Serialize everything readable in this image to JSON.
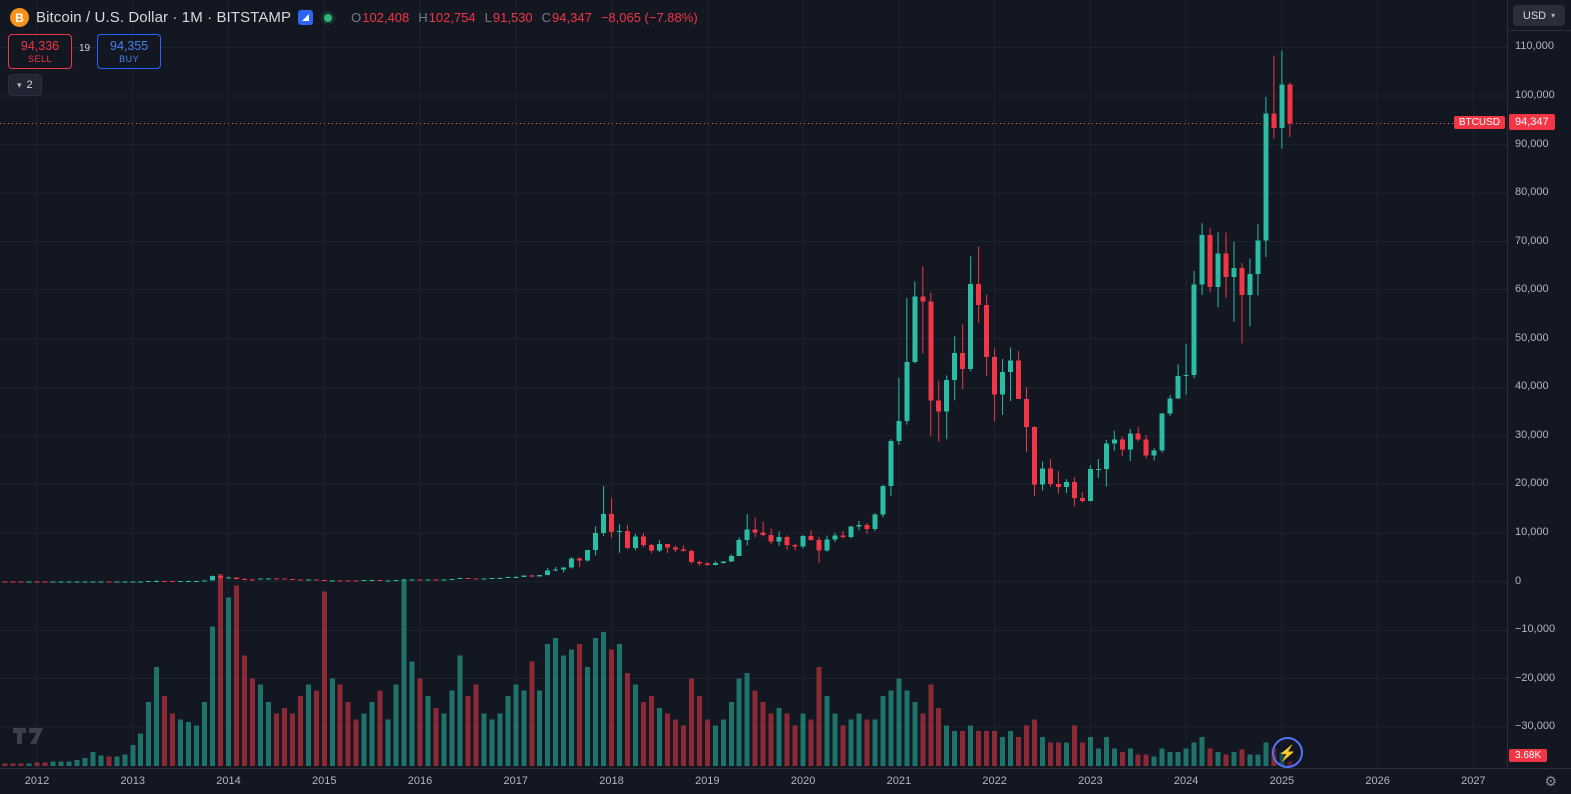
{
  "header": {
    "symbol_title": "Bitcoin / U.S. Dollar · 1M · BITSTAMP",
    "ohlc": {
      "open_label": "O",
      "open": "102,408",
      "high_label": "H",
      "high": "102,754",
      "low_label": "L",
      "low": "91,530",
      "close_label": "C",
      "close": "94,347",
      "change": "−8,065 (−7.88%)"
    },
    "currency_button": "USD"
  },
  "trade_panel": {
    "sell_price": "94,336",
    "sell_label": "SELL",
    "spread": "19",
    "buy_price": "94,355",
    "buy_label": "BUY"
  },
  "object_tree_button": {
    "count": "2"
  },
  "price_label": {
    "symbol_badge": "BTCUSD",
    "price": "94,347"
  },
  "volume_badge": "3.68K",
  "icons": {
    "bitcoin": "B",
    "caret_down": "▾",
    "chevron_down": "▾",
    "lightning": "⚡",
    "gear": "⚙"
  },
  "colors": {
    "background": "#131722",
    "panel_border": "#2a2e39",
    "grid": "#1c2130",
    "up": "#2abda4",
    "down": "#f23645",
    "vol_up": "rgba(42,189,164,0.55)",
    "vol_down": "rgba(242,54,69,0.55)",
    "axis_text": "#b2b5be",
    "text": "#d1d4dc",
    "muted_text": "#787b86",
    "bitcoin_orange": "#f7931a",
    "buy_blue": "#2962ff",
    "status_green": "#2bb673"
  },
  "axes": {
    "price_ticks": [
      "110,000",
      "100,000",
      "90,000",
      "80,000",
      "70,000",
      "60,000",
      "50,000",
      "40,000",
      "30,000",
      "20,000",
      "10,000",
      "0",
      "−10,000",
      "−20,000",
      "−30,000"
    ],
    "time_ticks": [
      "2012",
      "2013",
      "2014",
      "2015",
      "2016",
      "2017",
      "2018",
      "2019",
      "2020",
      "2021",
      "2022",
      "2023",
      "2024",
      "2025",
      "2026",
      "2027"
    ]
  },
  "chart_data": {
    "type": "candlestick",
    "title": "Bitcoin / U.S. Dollar, 1M, BITSTAMP",
    "interval": "1M",
    "start_month": "2011-08",
    "columns": [
      "open",
      "high",
      "low",
      "close",
      "volume_thousands"
    ],
    "price_axis_range": [
      -33000,
      114000
    ],
    "grid": true,
    "price_line": {
      "value": 94347,
      "color": "#f23645"
    },
    "current_volume_thousands": 3.68,
    "candles": [
      [
        11,
        11,
        5.9,
        8.2,
        2
      ],
      [
        8.2,
        8.9,
        4.8,
        5.0,
        2
      ],
      [
        5.0,
        5.5,
        2.0,
        3.2,
        2
      ],
      [
        3.2,
        3.6,
        1.9,
        3.0,
        2
      ],
      [
        3.0,
        5.0,
        2.8,
        4.7,
        2
      ],
      [
        5.3,
        7.2,
        3.8,
        5.0,
        3
      ],
      [
        5.0,
        6.2,
        4.2,
        4.9,
        3
      ],
      [
        4.9,
        5.5,
        4.2,
        4.9,
        4
      ],
      [
        4.9,
        5.4,
        4.6,
        5.0,
        4
      ],
      [
        5.0,
        5.9,
        4.8,
        5.2,
        4
      ],
      [
        5.2,
        6.8,
        5.1,
        6.7,
        5
      ],
      [
        6.7,
        9.5,
        6.4,
        9.4,
        7
      ],
      [
        9.4,
        16.4,
        7.6,
        10.2,
        12
      ],
      [
        10.2,
        12.7,
        9.7,
        12.4,
        9
      ],
      [
        12.4,
        12.9,
        10.2,
        11.2,
        8
      ],
      [
        11.2,
        12.6,
        10.5,
        12.6,
        8
      ],
      [
        12.6,
        13.9,
        12.3,
        13.5,
        10
      ],
      [
        13.5,
        21,
        13,
        20.4,
        18
      ],
      [
        20.4,
        34.5,
        19.8,
        33.4,
        28
      ],
      [
        33.4,
        95,
        32.8,
        93,
        55
      ],
      [
        93,
        266,
        50,
        139,
        85
      ],
      [
        139,
        140,
        79,
        128,
        60
      ],
      [
        128,
        130,
        88,
        97,
        45
      ],
      [
        97,
        111,
        65,
        106,
        40
      ],
      [
        106,
        147,
        92,
        141,
        38
      ],
      [
        141,
        147,
        109,
        141,
        35
      ],
      [
        141,
        233,
        109,
        211,
        55
      ],
      [
        211,
        1242,
        200,
        1130,
        120
      ],
      [
        1130,
        1240,
        382,
        755,
        165
      ],
      [
        755,
        1025,
        720,
        800,
        145
      ],
      [
        800,
        830,
        400,
        550,
        155
      ],
      [
        550,
        710,
        420,
        455,
        95
      ],
      [
        455,
        550,
        340,
        445,
        75
      ],
      [
        445,
        630,
        420,
        625,
        70
      ],
      [
        625,
        680,
        540,
        635,
        55
      ],
      [
        635,
        655,
        560,
        580,
        45
      ],
      [
        580,
        600,
        440,
        475,
        50
      ],
      [
        475,
        495,
        365,
        385,
        45
      ],
      [
        385,
        420,
        275,
        340,
        60
      ],
      [
        340,
        460,
        320,
        375,
        70
      ],
      [
        375,
        385,
        280,
        315,
        65
      ],
      [
        315,
        320,
        152,
        217,
        150
      ],
      [
        217,
        270,
        210,
        254,
        75
      ],
      [
        254,
        300,
        236,
        244,
        70
      ],
      [
        244,
        262,
        210,
        235,
        55
      ],
      [
        235,
        248,
        226,
        230,
        40
      ],
      [
        230,
        268,
        220,
        263,
        45
      ],
      [
        263,
        318,
        255,
        284,
        55
      ],
      [
        284,
        285,
        198,
        230,
        65
      ],
      [
        230,
        246,
        223,
        236,
        40
      ],
      [
        236,
        334,
        235,
        314,
        70
      ],
      [
        314,
        504,
        290,
        377,
        160
      ],
      [
        377,
        467,
        345,
        430,
        90
      ],
      [
        430,
        436,
        350,
        368,
        75
      ],
      [
        368,
        440,
        365,
        437,
        60
      ],
      [
        437,
        444,
        383,
        416,
        50
      ],
      [
        416,
        470,
        410,
        448,
        45
      ],
      [
        448,
        545,
        438,
        531,
        65
      ],
      [
        531,
        780,
        515,
        670,
        95
      ],
      [
        670,
        700,
        590,
        625,
        60
      ],
      [
        625,
        630,
        465,
        575,
        70
      ],
      [
        575,
        630,
        565,
        610,
        45
      ],
      [
        610,
        700,
        600,
        700,
        40
      ],
      [
        700,
        755,
        670,
        745,
        45
      ],
      [
        745,
        980,
        740,
        960,
        60
      ],
      [
        960,
        1180,
        750,
        965,
        70
      ],
      [
        965,
        1220,
        920,
        1190,
        65
      ],
      [
        1190,
        1330,
        890,
        1080,
        90
      ],
      [
        1080,
        1345,
        1060,
        1340,
        65
      ],
      [
        1340,
        2760,
        1290,
        2300,
        105
      ],
      [
        2300,
        3000,
        2100,
        2480,
        110
      ],
      [
        2480,
        2930,
        1830,
        2870,
        95
      ],
      [
        2870,
        4980,
        2650,
        4735,
        100
      ],
      [
        4735,
        4980,
        2970,
        4340,
        105
      ],
      [
        4340,
        6450,
        4110,
        6440,
        85
      ],
      [
        6440,
        11400,
        5380,
        9950,
        110
      ],
      [
        9950,
        19666,
        9380,
        13900,
        115
      ],
      [
        13900,
        17200,
        9000,
        10200,
        100
      ],
      [
        10200,
        11790,
        5920,
        10360,
        105
      ],
      [
        10360,
        11700,
        6600,
        6930,
        80
      ],
      [
        6930,
        9760,
        6430,
        9240,
        70
      ],
      [
        9240,
        9990,
        7040,
        7500,
        55
      ],
      [
        7500,
        7750,
        5780,
        6400,
        60
      ],
      [
        6400,
        8500,
        6070,
        7750,
        50
      ],
      [
        7750,
        7760,
        5860,
        7020,
        45
      ],
      [
        7020,
        7420,
        6100,
        6630,
        40
      ],
      [
        6630,
        7450,
        6200,
        6300,
        35
      ],
      [
        6300,
        6550,
        3650,
        4020,
        75
      ],
      [
        4020,
        4300,
        3150,
        3690,
        60
      ],
      [
        3690,
        4060,
        3350,
        3420,
        40
      ],
      [
        3420,
        4200,
        3350,
        3820,
        35
      ],
      [
        3820,
        4140,
        3670,
        4100,
        40
      ],
      [
        4100,
        5620,
        4050,
        5270,
        55
      ],
      [
        5270,
        9070,
        5230,
        8560,
        75
      ],
      [
        8560,
        13880,
        7430,
        10760,
        80
      ],
      [
        10760,
        13150,
        9080,
        10080,
        65
      ],
      [
        10080,
        12320,
        9300,
        9590,
        55
      ],
      [
        9590,
        10900,
        7700,
        8280,
        45
      ],
      [
        8280,
        10350,
        7300,
        9140,
        50
      ],
      [
        9140,
        9500,
        6520,
        7550,
        45
      ],
      [
        7550,
        7750,
        6430,
        7190,
        35
      ],
      [
        7190,
        9570,
        6850,
        9350,
        45
      ],
      [
        9350,
        10500,
        8400,
        8530,
        40
      ],
      [
        8530,
        9180,
        3850,
        6420,
        85
      ],
      [
        6420,
        9460,
        6150,
        8620,
        60
      ],
      [
        8620,
        10070,
        8100,
        9450,
        45
      ],
      [
        9450,
        10380,
        8830,
        9140,
        35
      ],
      [
        9140,
        11440,
        8900,
        11350,
        40
      ],
      [
        11350,
        12480,
        10550,
        11650,
        45
      ],
      [
        11650,
        12050,
        9830,
        10780,
        40
      ],
      [
        10780,
        14100,
        10380,
        13800,
        40
      ],
      [
        13800,
        19860,
        13200,
        19700,
        60
      ],
      [
        19700,
        29300,
        17600,
        28950,
        65
      ],
      [
        28950,
        42000,
        28130,
        33100,
        75
      ],
      [
        33100,
        58350,
        32300,
        45160,
        65
      ],
      [
        45160,
        61780,
        44950,
        58730,
        55
      ],
      [
        58730,
        64900,
        46930,
        57700,
        45
      ],
      [
        57700,
        59500,
        30000,
        37250,
        70
      ],
      [
        37250,
        41330,
        28800,
        35000,
        50
      ],
      [
        35000,
        42450,
        29300,
        41460,
        35
      ],
      [
        41460,
        50500,
        37300,
        47100,
        30
      ],
      [
        47100,
        52950,
        39600,
        43820,
        30
      ],
      [
        43820,
        67000,
        43300,
        61300,
        35
      ],
      [
        61300,
        69000,
        53300,
        57000,
        30
      ],
      [
        57000,
        59100,
        42330,
        46200,
        30
      ],
      [
        46200,
        47990,
        32950,
        38480,
        30
      ],
      [
        38480,
        45820,
        34320,
        43190,
        25
      ],
      [
        43190,
        48200,
        37160,
        45540,
        30
      ],
      [
        45540,
        47450,
        37600,
        37640,
        25
      ],
      [
        37640,
        40020,
        26700,
        31790,
        35
      ],
      [
        31790,
        31960,
        17600,
        19940,
        40
      ],
      [
        19940,
        24670,
        18780,
        23290,
        25
      ],
      [
        23290,
        25200,
        19520,
        20050,
        20
      ],
      [
        20050,
        22800,
        18100,
        19420,
        20
      ],
      [
        19420,
        21080,
        18190,
        20490,
        20
      ],
      [
        20490,
        21480,
        15480,
        17160,
        35
      ],
      [
        17160,
        18370,
        16260,
        16540,
        20
      ],
      [
        16540,
        23960,
        16490,
        23130,
        25
      ],
      [
        23130,
        25250,
        21350,
        23140,
        15
      ],
      [
        23140,
        29180,
        19550,
        28470,
        25
      ],
      [
        28470,
        31050,
        26940,
        29230,
        15
      ],
      [
        29230,
        29820,
        25800,
        27210,
        12
      ],
      [
        27210,
        31400,
        24800,
        30470,
        15
      ],
      [
        30470,
        31800,
        28850,
        29230,
        10
      ],
      [
        29230,
        30200,
        25350,
        25940,
        10
      ],
      [
        25940,
        27480,
        24900,
        26960,
        8
      ],
      [
        26960,
        34700,
        26540,
        34650,
        15
      ],
      [
        34650,
        38400,
        34100,
        37710,
        12
      ],
      [
        37710,
        44700,
        37600,
        42280,
        12
      ],
      [
        42280,
        48970,
        38500,
        42580,
        15
      ],
      [
        42580,
        63970,
        41880,
        61170,
        20
      ],
      [
        61170,
        73800,
        59000,
        71330,
        25
      ],
      [
        71330,
        72750,
        59600,
        60640,
        15
      ],
      [
        60640,
        71950,
        56500,
        67540,
        12
      ],
      [
        67540,
        71900,
        58400,
        62670,
        10
      ],
      [
        62670,
        70000,
        53500,
        64620,
        12
      ],
      [
        64620,
        65600,
        49000,
        58970,
        14
      ],
      [
        58970,
        66500,
        52550,
        63330,
        10
      ],
      [
        63330,
        73600,
        58900,
        70220,
        10
      ],
      [
        70220,
        99800,
        66800,
        96400,
        20
      ],
      [
        96400,
        108350,
        91200,
        93430,
        15
      ],
      [
        93430,
        109350,
        89160,
        102400,
        12
      ],
      [
        102408,
        102754,
        91530,
        94347,
        3.68
      ]
    ]
  }
}
